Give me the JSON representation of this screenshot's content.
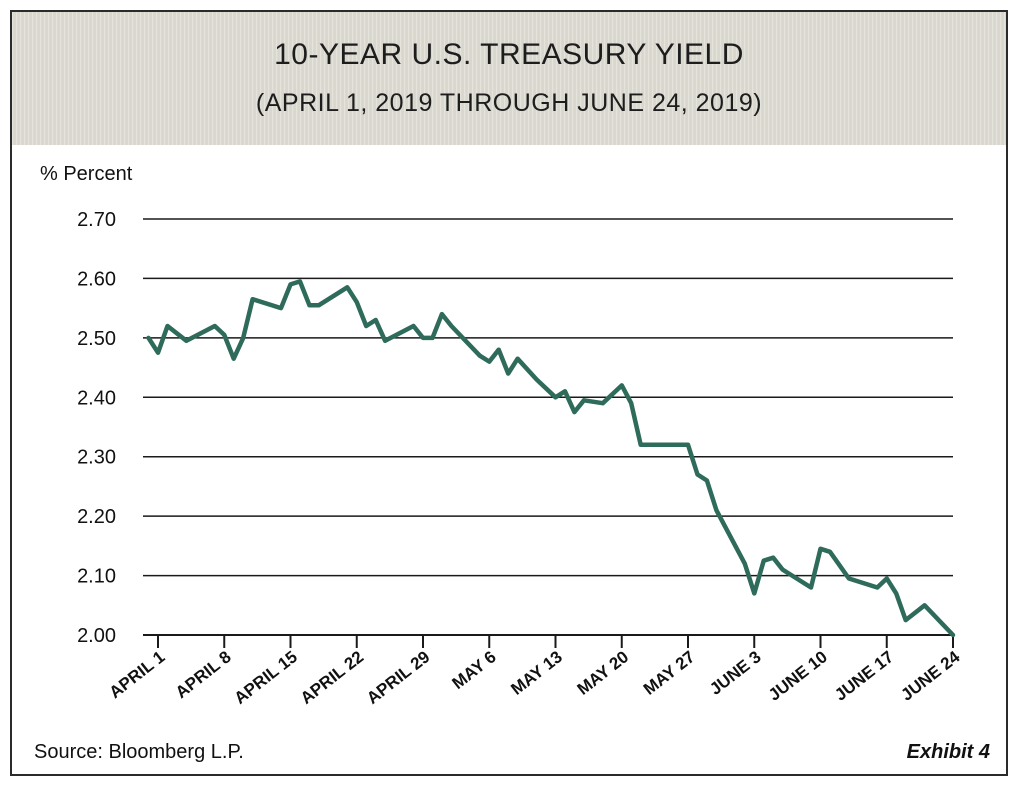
{
  "chart_data": {
    "type": "line",
    "title": "10-YEAR U.S. TREASURY YIELD",
    "subtitle": "(APRIL 1, 2019 THROUGH JUNE 24, 2019)",
    "ylabel": "% Percent",
    "xlabel": "",
    "ylim": [
      2.0,
      2.7
    ],
    "yticks": [
      "2.70",
      "2.60",
      "2.50",
      "2.40",
      "2.30",
      "2.20",
      "2.10",
      "2.00"
    ],
    "ytick_values": [
      2.7,
      2.6,
      2.5,
      2.4,
      2.3,
      2.2,
      2.1,
      2.0
    ],
    "xlim": [
      "2019-04-01",
      "2019-06-24"
    ],
    "x_tick_labels": [
      "APRIL 1",
      "APRIL 8",
      "APRIL 15",
      "APRIL 22",
      "APRIL 29",
      "MAY 6",
      "MAY 13",
      "MAY 20",
      "MAY 27",
      "JUNE 3",
      "JUNE 10",
      "JUNE 17",
      "JUNE 24"
    ],
    "x_tick_dates": [
      "2019-04-01",
      "2019-04-08",
      "2019-04-15",
      "2019-04-22",
      "2019-04-29",
      "2019-05-06",
      "2019-05-13",
      "2019-05-20",
      "2019-05-27",
      "2019-06-03",
      "2019-06-10",
      "2019-06-17",
      "2019-06-24"
    ],
    "grid": true,
    "line_color": "#2f6b5a",
    "series": [
      {
        "name": "",
        "x": [
          "2019-03-31",
          "2019-04-01",
          "2019-04-02",
          "2019-04-04",
          "2019-04-07",
          "2019-04-08",
          "2019-04-09",
          "2019-04-10",
          "2019-04-11",
          "2019-04-14",
          "2019-04-15",
          "2019-04-16",
          "2019-04-17",
          "2019-04-18",
          "2019-04-21",
          "2019-04-22",
          "2019-04-23",
          "2019-04-24",
          "2019-04-25",
          "2019-04-28",
          "2019-04-29",
          "2019-04-30",
          "2019-05-01",
          "2019-05-02",
          "2019-05-05",
          "2019-05-06",
          "2019-05-07",
          "2019-05-08",
          "2019-05-09",
          "2019-05-11",
          "2019-05-13",
          "2019-05-14",
          "2019-05-15",
          "2019-05-16",
          "2019-05-18",
          "2019-05-20",
          "2019-05-21",
          "2019-05-22",
          "2019-05-24",
          "2019-05-27",
          "2019-05-28",
          "2019-05-29",
          "2019-05-30",
          "2019-06-02",
          "2019-06-03",
          "2019-06-04",
          "2019-06-05",
          "2019-06-06",
          "2019-06-09",
          "2019-06-10",
          "2019-06-11",
          "2019-06-13",
          "2019-06-16",
          "2019-06-17",
          "2019-06-18",
          "2019-06-19",
          "2019-06-21",
          "2019-06-24"
        ],
        "y": [
          2.5,
          2.475,
          2.52,
          2.495,
          2.52,
          2.505,
          2.465,
          2.5,
          2.565,
          2.55,
          2.59,
          2.595,
          2.555,
          2.555,
          2.585,
          2.56,
          2.52,
          2.53,
          2.495,
          2.52,
          2.5,
          2.5,
          2.54,
          2.52,
          2.47,
          2.46,
          2.48,
          2.44,
          2.465,
          2.43,
          2.4,
          2.41,
          2.375,
          2.395,
          2.39,
          2.42,
          2.39,
          2.32,
          2.32,
          2.32,
          2.27,
          2.26,
          2.21,
          2.12,
          2.07,
          2.125,
          2.13,
          2.11,
          2.08,
          2.145,
          2.14,
          2.095,
          2.08,
          2.095,
          2.07,
          2.025,
          2.05,
          2.0
        ]
      }
    ]
  },
  "footer": {
    "source": "Source: Bloomberg L.P.",
    "exhibit": "Exhibit 4"
  }
}
